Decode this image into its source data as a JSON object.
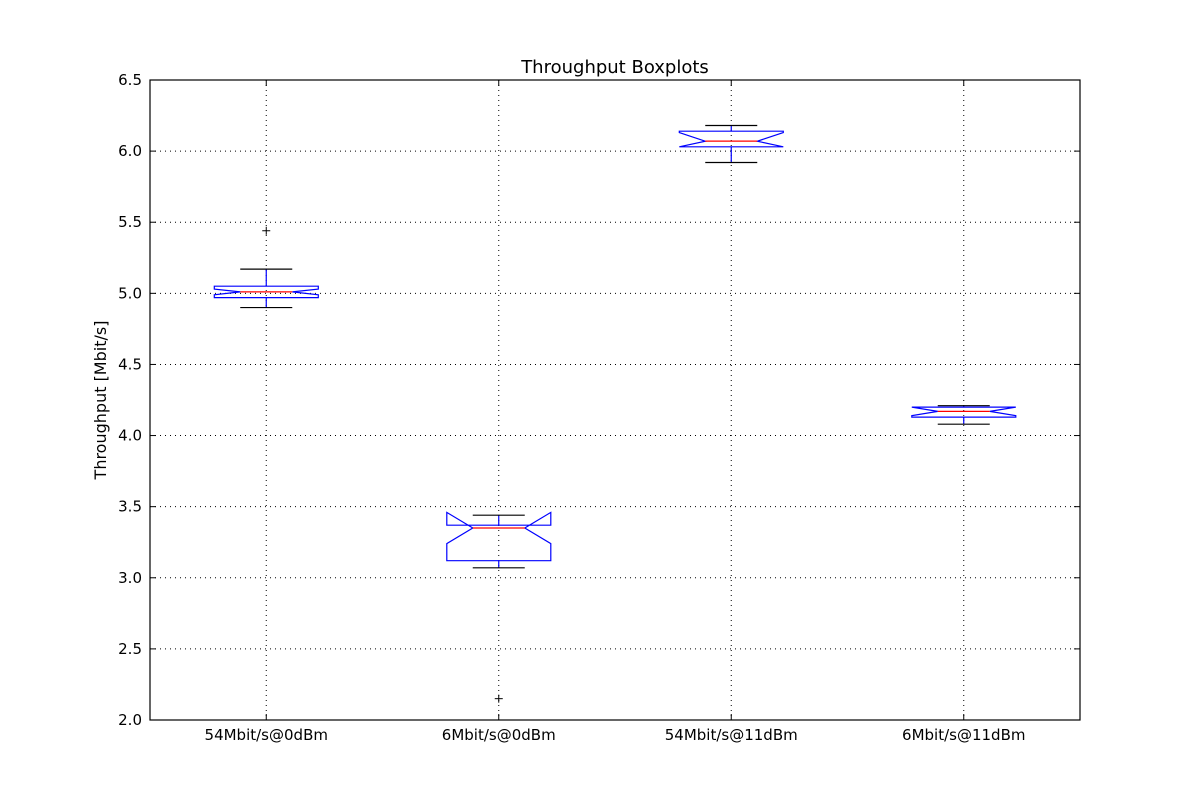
{
  "chart_data": {
    "type": "boxplot",
    "title": "Throughput Boxplots",
    "xlabel": "",
    "ylabel": "Throughput [Mbit/s]",
    "ylim": [
      2.0,
      6.5
    ],
    "yticks": [
      "2.0",
      "2.5",
      "3.0",
      "3.5",
      "4.0",
      "4.5",
      "5.0",
      "5.5",
      "6.0",
      "6.5"
    ],
    "grid": true,
    "notched": true,
    "categories": [
      "54Mbit/s@0dBm",
      "6Mbit/s@0dBm",
      "54Mbit/s@11dBm",
      "6Mbit/s@11dBm"
    ],
    "boxes": [
      {
        "whisker_low": 4.9,
        "q1": 4.97,
        "median": 5.01,
        "q3": 5.05,
        "whisker_high": 5.17,
        "notch_low": 4.99,
        "notch_high": 5.03,
        "outliers": [
          5.44
        ]
      },
      {
        "whisker_low": 3.07,
        "q1": 3.12,
        "median": 3.35,
        "q3": 3.37,
        "whisker_high": 3.44,
        "notch_low": 3.24,
        "notch_high": 3.46,
        "outliers": [
          2.15
        ]
      },
      {
        "whisker_low": 5.92,
        "q1": 6.03,
        "median": 6.07,
        "q3": 6.14,
        "whisker_high": 6.18,
        "notch_low": 6.03,
        "notch_high": 6.13,
        "outliers": []
      },
      {
        "whisker_low": 4.08,
        "q1": 4.13,
        "median": 4.17,
        "q3": 4.2,
        "whisker_high": 4.21,
        "notch_low": 4.14,
        "notch_high": 4.2,
        "outliers": []
      }
    ],
    "colors": {
      "box": "#0000ff",
      "median": "#ff0000",
      "whisker": "#000000",
      "outlier": "#000000"
    }
  }
}
